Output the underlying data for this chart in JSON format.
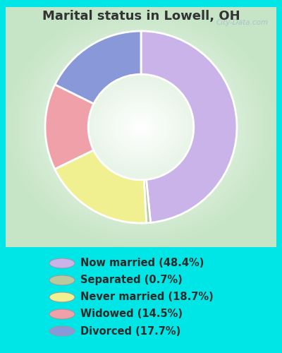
{
  "title": "Marital status in Lowell, OH",
  "slices": [
    {
      "label": "Now married (48.4%)",
      "value": 48.4,
      "color": "#c9b3e8"
    },
    {
      "label": "Separated (0.7%)",
      "value": 0.7,
      "color": "#b8c9a0"
    },
    {
      "label": "Never married (18.7%)",
      "value": 18.7,
      "color": "#f0f090"
    },
    {
      "label": "Widowed (14.5%)",
      "value": 14.5,
      "color": "#f0a0a8"
    },
    {
      "label": "Divorced (17.7%)",
      "value": 17.7,
      "color": "#8898d8"
    }
  ],
  "bg_outer": "#00e5e5",
  "bg_inner_center": "#ffffff",
  "bg_inner_edge": "#c8e8c8",
  "title_color": "#333333",
  "title_fontsize": 13,
  "watermark": "City-Data.com",
  "legend_fontsize": 10.5,
  "legend_marker_size": 12
}
